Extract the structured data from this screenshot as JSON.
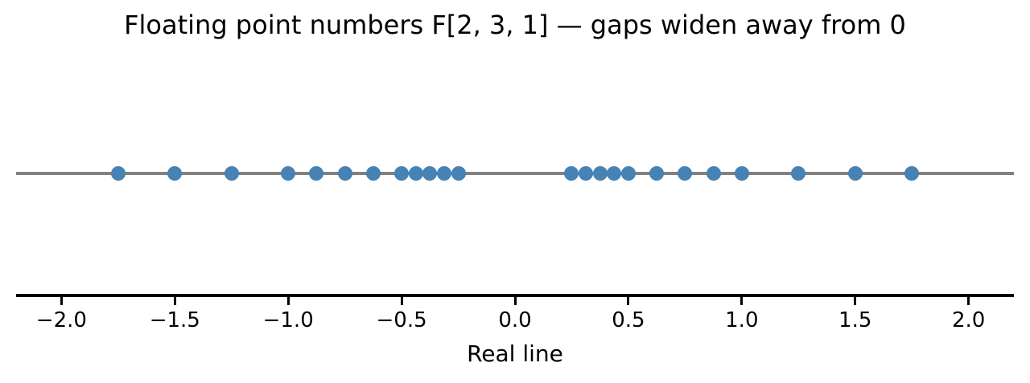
{
  "colors": {
    "dot": "#4682B4",
    "number_line": "#808080",
    "axis": "#000000",
    "text": "#000000",
    "background": "#ffffff"
  },
  "chart_data": {
    "type": "scatter",
    "title": "Floating point numbers F[2, 3, 1] — gaps widen away from 0",
    "xlabel": "Real line",
    "xlim": [
      -2.2,
      2.2
    ],
    "xticks": [
      -2.0,
      -1.5,
      -1.0,
      -0.5,
      0.0,
      0.5,
      1.0,
      1.5,
      2.0
    ],
    "xtick_labels": [
      "−2.0",
      "−1.5",
      "−1.0",
      "−0.5",
      "0.0",
      "0.5",
      "1.0",
      "1.5",
      "2.0"
    ],
    "y_value": 0,
    "grid": false,
    "legend": false,
    "points": [
      -1.75,
      -1.5,
      -1.25,
      -1.0,
      -0.875,
      -0.75,
      -0.625,
      -0.5,
      -0.4375,
      -0.375,
      -0.3125,
      -0.25,
      0.25,
      0.3125,
      0.375,
      0.4375,
      0.5,
      0.625,
      0.75,
      0.875,
      1.0,
      1.25,
      1.5,
      1.75
    ]
  }
}
